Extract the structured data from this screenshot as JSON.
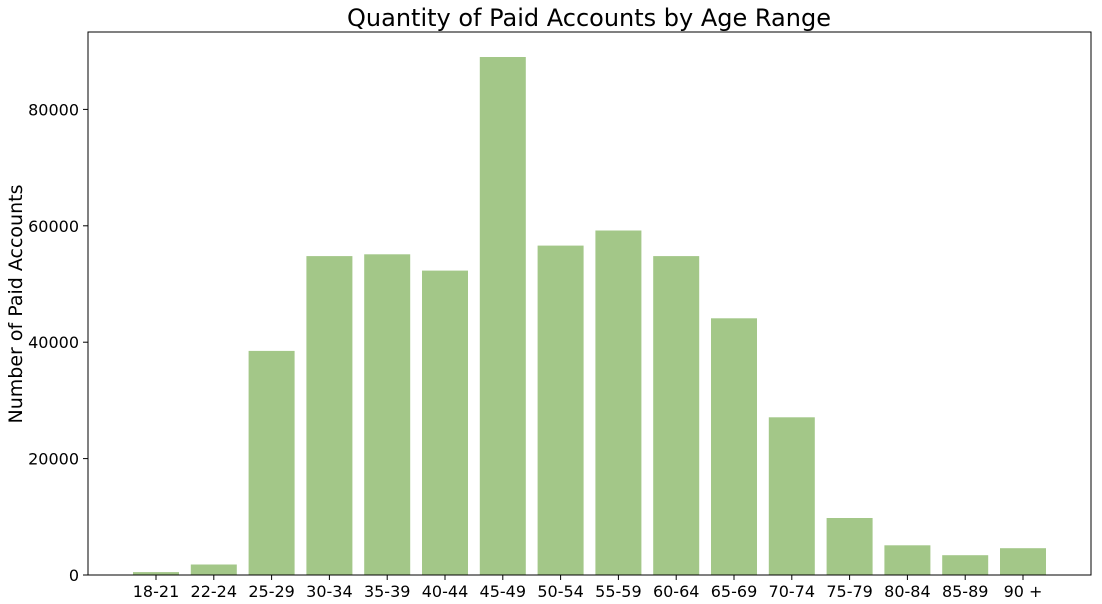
{
  "chart_data": {
    "type": "bar",
    "title": "Quantity of Paid Accounts by Age Range",
    "xlabel": "",
    "ylabel": "Number of Paid Accounts",
    "categories": [
      "18-21",
      "22-24",
      "25-29",
      "30-34",
      "35-39",
      "40-44",
      "45-49",
      "50-54",
      "55-59",
      "60-64",
      "65-69",
      "70-74",
      "75-79",
      "80-84",
      "85-89",
      "90 +"
    ],
    "values": [
      500,
      1800,
      38500,
      54800,
      55100,
      52300,
      89000,
      56600,
      59200,
      54800,
      44100,
      27100,
      9800,
      5100,
      3400,
      4600
    ],
    "ylim": [
      0,
      93300
    ],
    "yticks": [
      0,
      20000,
      40000,
      60000,
      80000
    ],
    "ytick_labels": [
      "0",
      "20000",
      "40000",
      "60000",
      "80000"
    ],
    "grid": false,
    "legend": "none",
    "bar_color": "#a3c788"
  }
}
